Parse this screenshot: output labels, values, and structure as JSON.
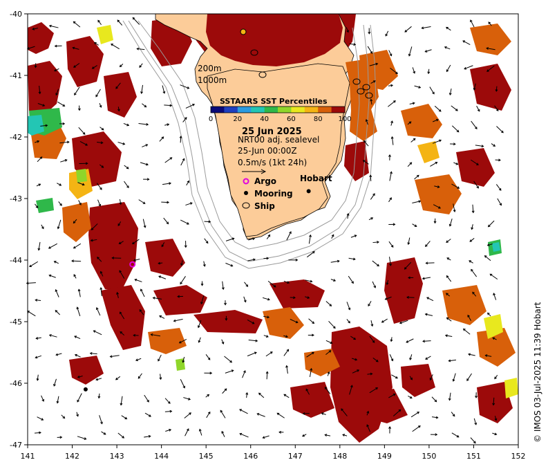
{
  "map": {
    "title": "SSTAARS SST Percentiles",
    "date": "25 Jun 2025",
    "product": "NRT00 adj. sealevel",
    "time": "25-Jun 00:00Z",
    "speed_scale": "0.5m/s (1kt 24h)",
    "contours": [
      "200m",
      "1000m"
    ],
    "place": "Hobart",
    "credit": "© IMOS 03-Jul-2025 11:39 Hobart"
  },
  "legend": {
    "ticks": [
      "0",
      "20",
      "40",
      "60",
      "80",
      "100"
    ],
    "colors": [
      "#0a0a78",
      "#1f3fbf",
      "#2a9be0",
      "#23c6b4",
      "#2fb84a",
      "#8fd62a",
      "#e8e81e",
      "#f4b414",
      "#d8600a",
      "#9c0a0a"
    ]
  },
  "key": {
    "argo": "Argo",
    "mooring": "Mooring",
    "ship": "Ship"
  },
  "axes": {
    "x_ticks": [
      "141",
      "142",
      "143",
      "144",
      "145",
      "146",
      "147",
      "148",
      "149",
      "150",
      "151",
      "152"
    ],
    "y_ticks": [
      "-40",
      "-41",
      "-42",
      "-43",
      "-44",
      "-45",
      "-46",
      "-47"
    ],
    "xlim": [
      141,
      152
    ],
    "ylim": [
      -47,
      -40
    ]
  },
  "markers": {
    "argo": [
      {
        "lon": 143.35,
        "lat": -44.07
      }
    ],
    "mooring": [
      {
        "lon": 142.3,
        "lat": -46.1
      },
      {
        "lon": 147.3,
        "lat": -42.88
      }
    ]
  },
  "colors": {
    "land": "#fccc99",
    "extreme": "#9c0a0a",
    "high": "#d8600a",
    "mid": "#f4b414",
    "warm": "#e8e81e",
    "cool": "#2fb84a",
    "cold": "#23c6b4"
  }
}
